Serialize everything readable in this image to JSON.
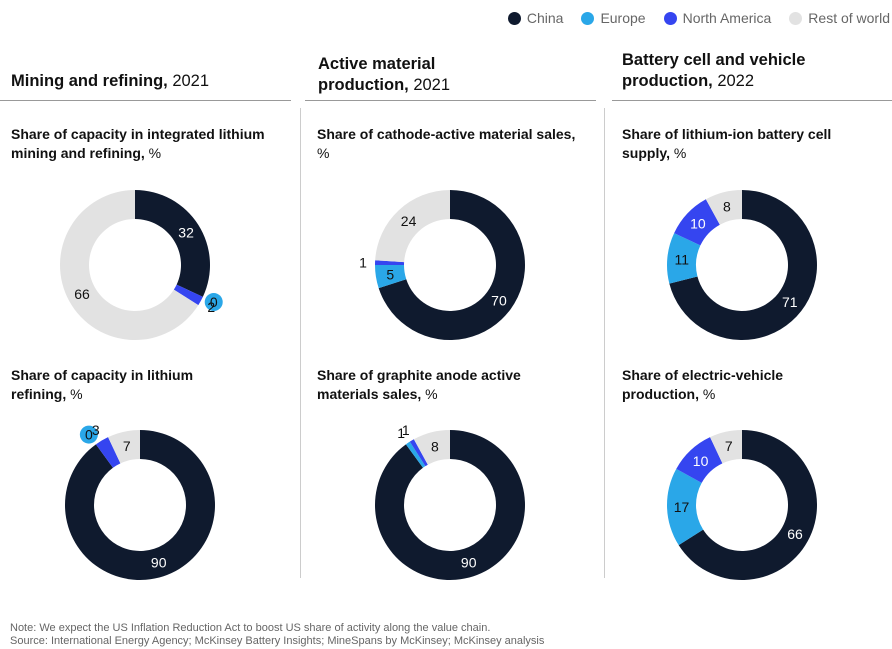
{
  "legend": [
    {
      "name": "China",
      "color": "#0f1a2e"
    },
    {
      "name": "Europe",
      "color": "#2aa7e8"
    },
    {
      "name": "North America",
      "color": "#3545f0"
    },
    {
      "name": "Rest of world",
      "color": "#e2e2e2"
    }
  ],
  "columns": [
    {
      "title_bold": "Mining and refining,",
      "title_light": " 2021"
    },
    {
      "title_bold": "Active material production,",
      "title_light": " 2021"
    },
    {
      "title_bold": "Battery cell and vehicle production,",
      "title_light": " 2022"
    }
  ],
  "chart_data": [
    {
      "type": "pie",
      "title": "Share of capacity in integrated lithium mining and refining,",
      "unit": " %",
      "categories": [
        "China",
        "Europe",
        "North America",
        "Rest of world"
      ],
      "values": [
        32,
        0,
        2,
        66
      ]
    },
    {
      "type": "pie",
      "title": "Share of capacity in lithium refining,",
      "unit": " %",
      "categories": [
        "China",
        "Europe",
        "North America",
        "Rest of world"
      ],
      "values": [
        90,
        0,
        3,
        7
      ]
    },
    {
      "type": "pie",
      "title": "Share of cathode-active material sales,",
      "unit": " %",
      "categories": [
        "China",
        "Europe",
        "North America",
        "Rest of world"
      ],
      "values": [
        70,
        5,
        1,
        24
      ]
    },
    {
      "type": "pie",
      "title": "Share of graphite anode active materials sales,",
      "unit": " %",
      "categories": [
        "China",
        "Europe",
        "North America",
        "Rest of world"
      ],
      "values": [
        90,
        1,
        1,
        8
      ]
    },
    {
      "type": "pie",
      "title": "Share of lithium-ion battery cell supply,",
      "unit": " %",
      "categories": [
        "China",
        "Europe",
        "North America",
        "Rest of world"
      ],
      "values": [
        71,
        11,
        10,
        8
      ]
    },
    {
      "type": "pie",
      "title": "Share of electric-vehicle production,",
      "unit": " %",
      "categories": [
        "China",
        "Europe",
        "North America",
        "Rest of world"
      ],
      "values": [
        66,
        17,
        10,
        7
      ]
    }
  ],
  "footnote": {
    "note": "Note: We expect the US Inflation Reduction Act to boost US share of activity along the value chain.",
    "source": "Source: International Energy Agency; McKinsey Battery Insights; MineSpans by McKinsey; McKinsey analysis"
  }
}
